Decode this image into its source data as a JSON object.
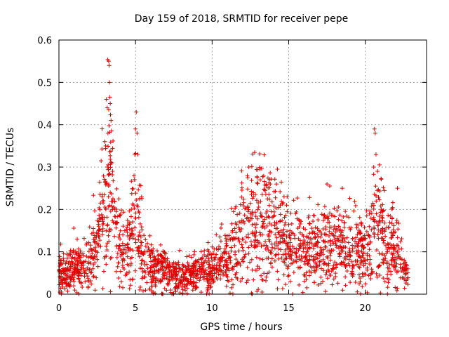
{
  "chart_data": {
    "type": "scatter",
    "title": "Day 159 of 2018, SRMTID for receiver pepe",
    "xlabel": "GPS time / hours",
    "ylabel": "SRMTID / TECUs",
    "xlim": [
      0,
      24
    ],
    "ylim": [
      0,
      0.6
    ],
    "xticks": [
      0,
      5,
      10,
      15,
      20
    ],
    "xtick_labels": [
      "0",
      "5",
      "10",
      "15",
      "20"
    ],
    "yticks": [
      0,
      0.1,
      0.2,
      0.3,
      0.4,
      0.5,
      0.6
    ],
    "ytick_labels": [
      "0",
      "0.1",
      "0.2",
      "0.3",
      "0.4",
      "0.5",
      "0.6"
    ],
    "grid": true,
    "marker": "+",
    "color": "#e00000",
    "series": [
      {
        "name": "SRMTID",
        "profile": [
          [
            0.0,
            0.05
          ],
          [
            0.5,
            0.05
          ],
          [
            1.0,
            0.07
          ],
          [
            1.5,
            0.06
          ],
          [
            2.0,
            0.07
          ],
          [
            2.5,
            0.12
          ],
          [
            3.0,
            0.2
          ],
          [
            3.3,
            0.28
          ],
          [
            3.6,
            0.16
          ],
          [
            4.0,
            0.1
          ],
          [
            4.5,
            0.11
          ],
          [
            5.0,
            0.18
          ],
          [
            5.3,
            0.14
          ],
          [
            5.6,
            0.09
          ],
          [
            6.0,
            0.07
          ],
          [
            7.0,
            0.05
          ],
          [
            8.0,
            0.04
          ],
          [
            9.0,
            0.05
          ],
          [
            10.0,
            0.06
          ],
          [
            11.0,
            0.09
          ],
          [
            12.0,
            0.14
          ],
          [
            12.5,
            0.16
          ],
          [
            13.0,
            0.17
          ],
          [
            13.5,
            0.17
          ],
          [
            14.0,
            0.16
          ],
          [
            14.5,
            0.15
          ],
          [
            15.0,
            0.11
          ],
          [
            16.0,
            0.1
          ],
          [
            17.0,
            0.11
          ],
          [
            18.0,
            0.12
          ],
          [
            19.0,
            0.1
          ],
          [
            20.0,
            0.1
          ],
          [
            20.5,
            0.14
          ],
          [
            21.0,
            0.15
          ],
          [
            21.5,
            0.1
          ],
          [
            22.0,
            0.12
          ],
          [
            22.5,
            0.06
          ],
          [
            22.8,
            0.04
          ]
        ],
        "peaks": [
          [
            3.1,
            0.46
          ],
          [
            3.15,
            0.44
          ],
          [
            3.2,
            0.38
          ],
          [
            3.25,
            0.55
          ],
          [
            3.28,
            0.54
          ],
          [
            3.3,
            0.5
          ],
          [
            3.35,
            0.45
          ],
          [
            3.4,
            0.41
          ],
          [
            3.45,
            0.31
          ],
          [
            3.0,
            0.36
          ],
          [
            3.05,
            0.35
          ],
          [
            3.5,
            0.29
          ],
          [
            5.0,
            0.39
          ],
          [
            5.05,
            0.43
          ],
          [
            5.1,
            0.38
          ],
          [
            4.95,
            0.33
          ],
          [
            5.15,
            0.33
          ],
          [
            4.9,
            0.28
          ],
          [
            12.4,
            0.3
          ],
          [
            12.3,
            0.28
          ],
          [
            13.8,
            0.26
          ],
          [
            14.2,
            0.26
          ],
          [
            17.5,
            0.26
          ],
          [
            18.5,
            0.25
          ],
          [
            20.6,
            0.39
          ],
          [
            20.65,
            0.38
          ],
          [
            20.7,
            0.33
          ],
          [
            20.55,
            0.3
          ],
          [
            20.8,
            0.29
          ],
          [
            22.1,
            0.25
          ],
          [
            12.6,
            0.0
          ],
          [
            12.62,
            0.0
          ]
        ],
        "count": 2200,
        "x_range": [
          0.0,
          22.8
        ],
        "seed": 159
      }
    ]
  }
}
